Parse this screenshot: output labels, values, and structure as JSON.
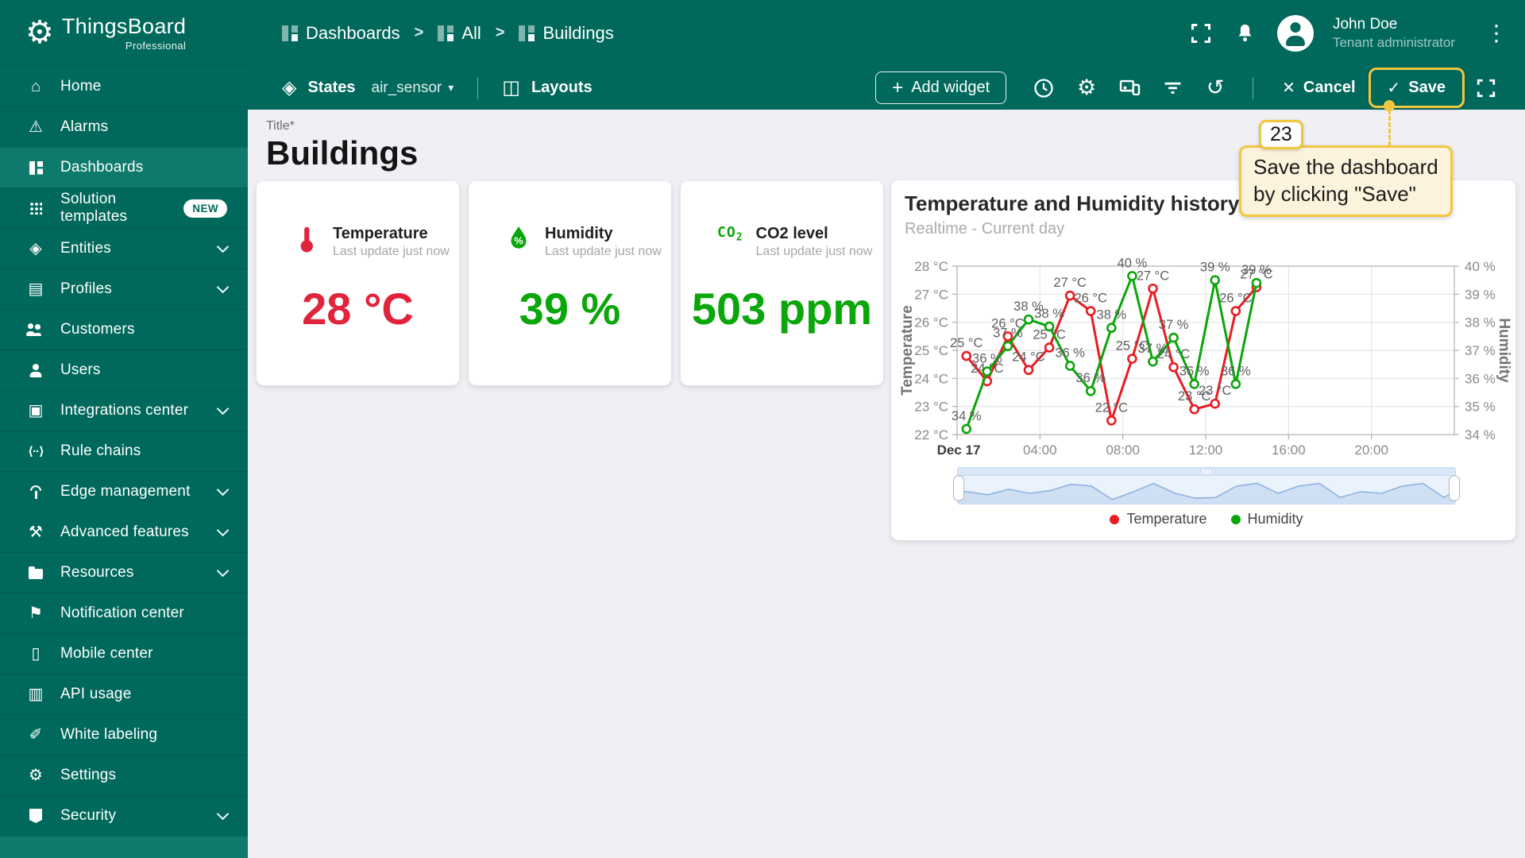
{
  "header": {
    "logo_title": "ThingsBoard",
    "logo_subtitle": "Professional",
    "breadcrumbs": [
      {
        "label": "Dashboards"
      },
      {
        "label": "All"
      },
      {
        "label": "Buildings"
      }
    ],
    "user": {
      "name": "John Doe",
      "role": "Tenant administrator"
    }
  },
  "toolbar": {
    "states_label": "States",
    "state_value": "air_sensor",
    "layouts_label": "Layouts",
    "add_widget_label": "Add widget",
    "icon_buttons": [
      "time-window",
      "dashboard-settings",
      "manage-layouts",
      "filters",
      "version-history"
    ],
    "cancel_label": "Cancel",
    "save_label": "Save"
  },
  "sidebar": {
    "items": [
      {
        "label": "Home",
        "icon": "home"
      },
      {
        "label": "Alarms",
        "icon": "alarm"
      },
      {
        "label": "Dashboards",
        "icon": "dashboards",
        "selected": true
      },
      {
        "label": "Solution templates",
        "icon": "templates",
        "badge": "NEW"
      },
      {
        "label": "Entities",
        "icon": "entities",
        "expandable": true
      },
      {
        "label": "Profiles",
        "icon": "profiles",
        "expandable": true
      },
      {
        "label": "Customers",
        "icon": "customers"
      },
      {
        "label": "Users",
        "icon": "users"
      },
      {
        "label": "Integrations center",
        "icon": "integrations",
        "expandable": true
      },
      {
        "label": "Rule chains",
        "icon": "rulechains"
      },
      {
        "label": "Edge management",
        "icon": "edge",
        "expandable": true
      },
      {
        "label": "Advanced features",
        "icon": "advanced",
        "expandable": true
      },
      {
        "label": "Resources",
        "icon": "resources",
        "expandable": true
      },
      {
        "label": "Notification center",
        "icon": "notifications"
      },
      {
        "label": "Mobile center",
        "icon": "mobile"
      },
      {
        "label": "API usage",
        "icon": "api"
      },
      {
        "label": "White labeling",
        "icon": "whitelabel"
      },
      {
        "label": "Settings",
        "icon": "settings"
      },
      {
        "label": "Security",
        "icon": "security",
        "expandable": true
      }
    ]
  },
  "page": {
    "title_label": "Title*",
    "title": "Buildings"
  },
  "cards": [
    {
      "key": "temperature",
      "title": "Temperature",
      "subtitle": "Last update just now",
      "value": "28 °C",
      "color": "#e0243c"
    },
    {
      "key": "humidity",
      "title": "Humidity",
      "subtitle": "Last update just now",
      "value": "39 %",
      "color": "#0aa60a"
    },
    {
      "key": "co2",
      "title": "CO2 level",
      "subtitle": "Last update just now",
      "value": "503 ppm",
      "color": "#0aa60a"
    }
  ],
  "chart": {
    "title": "Temperature and Humidity history",
    "subtitle": "Realtime - Current day"
  },
  "chart_data": {
    "type": "line",
    "title": "Temperature and Humidity history",
    "subtitle": "Realtime - Current day",
    "x_axis": {
      "tick_hours": [
        0,
        4,
        8,
        12,
        16,
        20
      ],
      "tick_labels": [
        "Dec 17",
        "04:00",
        "08:00",
        "12:00",
        "16:00",
        "20:00"
      ],
      "range_hours": [
        0,
        24
      ]
    },
    "y_axis_left": {
      "title": "Temperature",
      "ticks": [
        "28 °C",
        "27 °C",
        "26 °C",
        "25 °C",
        "24 °C",
        "23 °C",
        "22 °C"
      ],
      "range": [
        22,
        28
      ]
    },
    "y_axis_right": {
      "title": "Humidity",
      "ticks": [
        "40 %",
        "39 %",
        "38 %",
        "37 %",
        "36 %",
        "35 %",
        "34 %"
      ],
      "range": [
        34,
        40
      ]
    },
    "x_hours": [
      0.45,
      1.45,
      2.45,
      3.45,
      4.45,
      5.45,
      6.45,
      7.45,
      8.45,
      9.45,
      10.45,
      11.45,
      12.45,
      13.45,
      14.45
    ],
    "series": [
      {
        "name": "Temperature",
        "axis": "left",
        "color": "#e81c24",
        "values": [
          24.8,
          23.9,
          25.5,
          24.3,
          25.1,
          26.95,
          26.4,
          22.5,
          24.7,
          27.2,
          24.4,
          22.9,
          23.1,
          26.4,
          27.25
        ],
        "point_labels": [
          "25 °C",
          "24 °C",
          "26 °C",
          "24 °C",
          "25 °C",
          "27 °C",
          "26 °C",
          "22 °C",
          "25 °C",
          "27 °C",
          "24 °C",
          "23 °C",
          "23 °C",
          "26 °C",
          "27 °C"
        ]
      },
      {
        "name": "Humidity",
        "axis": "right",
        "color": "#0ba50b",
        "values": [
          34.2,
          36.25,
          37.15,
          38.1,
          37.85,
          36.45,
          35.55,
          37.8,
          39.65,
          36.6,
          37.45,
          35.8,
          39.5,
          35.8,
          39.4
        ],
        "point_labels": [
          "34 %",
          "36 %",
          "37 %",
          "38 %",
          "38 %",
          "36 %",
          "36 %",
          "38 %",
          "40 %",
          "37 %",
          "37 %",
          "36 %",
          "39 %",
          "36 %",
          "39 %"
        ]
      }
    ],
    "legend": [
      "Temperature",
      "Humidity"
    ],
    "grid": true,
    "legend_position": "bottom"
  },
  "tooltip": {
    "step": "23",
    "line1": "Save the dashboard",
    "line2": "by clicking \"Save\""
  },
  "colors": {
    "accent": "#00695c",
    "red": "#e0243c",
    "green": "#0aa60a",
    "highlight": "#f2c63e"
  }
}
